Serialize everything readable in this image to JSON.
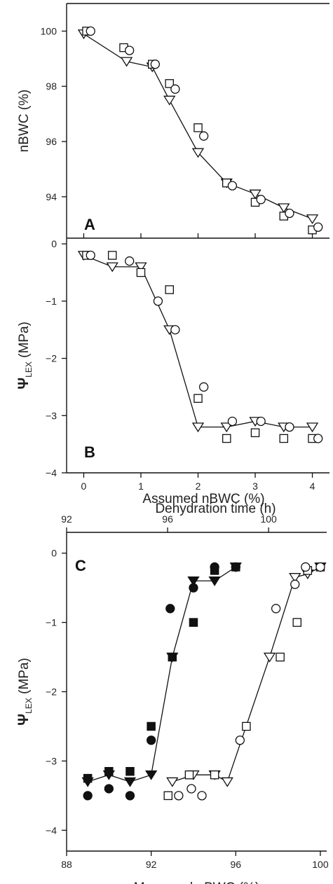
{
  "chart_data": [
    {
      "type": "scatter",
      "panel_label": "A",
      "ylabel": "nBWC (%)",
      "xlim": [
        -0.3,
        4.3
      ],
      "ylim": [
        92.5,
        101
      ],
      "yticks": [
        94,
        96,
        98,
        100
      ],
      "series": [
        {
          "marker": "triangle",
          "line": true,
          "x": [
            0,
            0.75,
            1.2,
            1.5,
            2.0,
            2.5,
            3.0,
            3.5,
            4.0
          ],
          "y": [
            99.9,
            98.9,
            98.7,
            97.5,
            95.6,
            94.5,
            94.1,
            93.6,
            93.2
          ]
        },
        {
          "marker": "square",
          "x": [
            0.05,
            0.7,
            1.2,
            1.5,
            2.0,
            2.5,
            3.0,
            3.5,
            4.0
          ],
          "y": [
            100.0,
            99.4,
            98.8,
            98.1,
            96.5,
            94.5,
            93.8,
            93.3,
            92.8
          ]
        },
        {
          "marker": "circle",
          "x": [
            0.12,
            0.8,
            1.25,
            1.6,
            2.1,
            2.6,
            3.1,
            3.6,
            4.1
          ],
          "y": [
            100.0,
            99.3,
            98.8,
            97.9,
            96.2,
            94.4,
            93.9,
            93.4,
            92.9
          ]
        }
      ]
    },
    {
      "type": "scatter",
      "panel_label": "B",
      "ylabel_main": "Ψ",
      "ylabel_sub": "LEX",
      "ylabel_unit": " (MPa)",
      "xlabel": "Dehydration time (h)",
      "xlim": [
        -0.3,
        4.3
      ],
      "ylim": [
        -4,
        0.1
      ],
      "xticks": [
        0,
        1,
        2,
        3,
        4
      ],
      "yticks": [
        0,
        -1,
        -2,
        -3,
        -4
      ],
      "series": [
        {
          "marker": "triangle",
          "line": true,
          "x": [
            0,
            0.5,
            1.0,
            1.5,
            2.0,
            2.5,
            3.0,
            3.5,
            4.0
          ],
          "y": [
            -0.2,
            -0.4,
            -0.4,
            -1.5,
            -3.2,
            -3.2,
            -3.1,
            -3.2,
            -3.2
          ]
        },
        {
          "marker": "square",
          "x": [
            0.05,
            0.5,
            1.0,
            1.5,
            2.0,
            2.5,
            3.0,
            3.5,
            4.0
          ],
          "y": [
            -0.2,
            -0.2,
            -0.5,
            -0.8,
            -2.7,
            -3.4,
            -3.3,
            -3.4,
            -3.4
          ]
        },
        {
          "marker": "circle",
          "x": [
            0.12,
            0.8,
            1.3,
            1.6,
            2.1,
            2.6,
            3.1,
            3.6,
            4.1
          ],
          "y": [
            -0.2,
            -0.3,
            -1.0,
            -1.5,
            -2.5,
            -3.1,
            -3.1,
            -3.2,
            -3.4
          ]
        }
      ]
    },
    {
      "type": "scatter",
      "panel_label": "C",
      "ylabel_main": "Ψ",
      "ylabel_sub": "LEX",
      "ylabel_unit": " (MPa)",
      "xlabel": "Measured nBWC (%)",
      "top_xlabel": "Assumed nBWC (%)",
      "xlim": [
        88,
        100.3
      ],
      "ylim": [
        -4.3,
        0.3
      ],
      "xticks": [
        88,
        92,
        96,
        100
      ],
      "top_xticks": [
        92,
        96,
        100
      ],
      "top_xlim": [
        92,
        102.3
      ],
      "yticks": [
        0,
        -1,
        -2,
        -3,
        -4
      ],
      "series": [
        {
          "marker": "triangle-filled",
          "line": true,
          "x": [
            89,
            90,
            91,
            92,
            93,
            94,
            95,
            96
          ],
          "y": [
            -3.3,
            -3.2,
            -3.3,
            -3.2,
            -1.5,
            -0.4,
            -0.4,
            -0.2
          ]
        },
        {
          "marker": "square-filled",
          "x": [
            89,
            90,
            91,
            92,
            93,
            94,
            95,
            96
          ],
          "y": [
            -3.25,
            -3.15,
            -3.15,
            -2.5,
            -1.5,
            -1.0,
            -0.25,
            -0.2
          ]
        },
        {
          "marker": "circle-filled",
          "x": [
            89,
            90,
            91,
            92,
            92.9,
            94,
            95,
            96
          ],
          "y": [
            -3.5,
            -3.4,
            -3.5,
            -2.7,
            -0.8,
            -0.5,
            -0.2,
            -0.2
          ]
        },
        {
          "marker": "triangle",
          "line": true,
          "x": [
            93,
            94,
            95,
            95.6,
            97.6,
            98.8,
            99.4,
            100
          ],
          "y": [
            -3.3,
            -3.2,
            -3.2,
            -3.3,
            -1.5,
            -0.35,
            -0.3,
            -0.2
          ]
        },
        {
          "marker": "square",
          "x": [
            92.8,
            93.8,
            95,
            96.5,
            98.1,
            98.9,
            99.4,
            100
          ],
          "y": [
            -3.5,
            -3.2,
            -3.2,
            -2.5,
            -1.5,
            -1.0,
            -0.25,
            -0.2
          ]
        },
        {
          "marker": "circle",
          "x": [
            93.3,
            93.9,
            94.4,
            96.2,
            97.9,
            98.8,
            99.3,
            100
          ],
          "y": [
            -3.5,
            -3.4,
            -3.5,
            -2.7,
            -0.8,
            -0.45,
            -0.2,
            -0.2
          ]
        }
      ]
    }
  ]
}
